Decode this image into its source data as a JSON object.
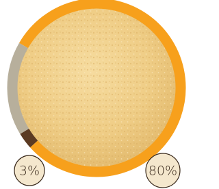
{
  "chart_data": {
    "type": "donut",
    "values": [
      80,
      3,
      17
    ],
    "value_labels": [
      "80%",
      "3%",
      null
    ],
    "colors": [
      "#f7a01c",
      "#5b3a22",
      "#b7af9c"
    ]
  }
}
